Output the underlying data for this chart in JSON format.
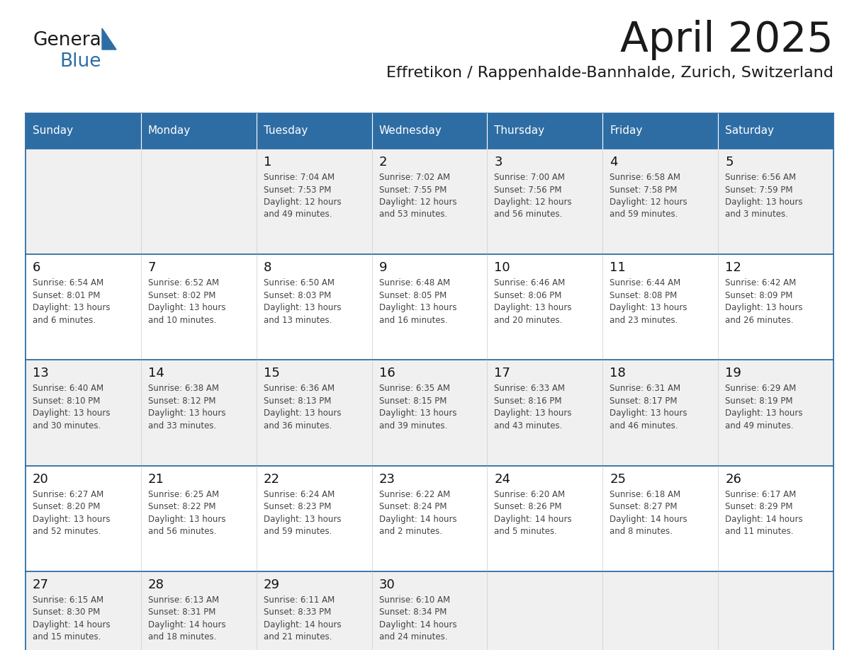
{
  "title": "April 2025",
  "subtitle": "Effretikon / Rappenhalde-Bannhalde, Zurich, Switzerland",
  "header_bg_color": "#2E6DA4",
  "header_text_color": "#FFFFFF",
  "cell_bg_color_odd": "#F0F0F0",
  "cell_bg_color_even": "#FFFFFF",
  "cell_text_color": "#444444",
  "day_number_color": "#111111",
  "grid_line_color": "#2E6DA4",
  "days_of_week": [
    "Sunday",
    "Monday",
    "Tuesday",
    "Wednesday",
    "Thursday",
    "Friday",
    "Saturday"
  ],
  "weeks": [
    [
      {
        "day": "",
        "sunrise": "",
        "sunset": "",
        "daylight": ""
      },
      {
        "day": "",
        "sunrise": "",
        "sunset": "",
        "daylight": ""
      },
      {
        "day": "1",
        "sunrise": "Sunrise: 7:04 AM",
        "sunset": "Sunset: 7:53 PM",
        "daylight": "Daylight: 12 hours\nand 49 minutes."
      },
      {
        "day": "2",
        "sunrise": "Sunrise: 7:02 AM",
        "sunset": "Sunset: 7:55 PM",
        "daylight": "Daylight: 12 hours\nand 53 minutes."
      },
      {
        "day": "3",
        "sunrise": "Sunrise: 7:00 AM",
        "sunset": "Sunset: 7:56 PM",
        "daylight": "Daylight: 12 hours\nand 56 minutes."
      },
      {
        "day": "4",
        "sunrise": "Sunrise: 6:58 AM",
        "sunset": "Sunset: 7:58 PM",
        "daylight": "Daylight: 12 hours\nand 59 minutes."
      },
      {
        "day": "5",
        "sunrise": "Sunrise: 6:56 AM",
        "sunset": "Sunset: 7:59 PM",
        "daylight": "Daylight: 13 hours\nand 3 minutes."
      }
    ],
    [
      {
        "day": "6",
        "sunrise": "Sunrise: 6:54 AM",
        "sunset": "Sunset: 8:01 PM",
        "daylight": "Daylight: 13 hours\nand 6 minutes."
      },
      {
        "day": "7",
        "sunrise": "Sunrise: 6:52 AM",
        "sunset": "Sunset: 8:02 PM",
        "daylight": "Daylight: 13 hours\nand 10 minutes."
      },
      {
        "day": "8",
        "sunrise": "Sunrise: 6:50 AM",
        "sunset": "Sunset: 8:03 PM",
        "daylight": "Daylight: 13 hours\nand 13 minutes."
      },
      {
        "day": "9",
        "sunrise": "Sunrise: 6:48 AM",
        "sunset": "Sunset: 8:05 PM",
        "daylight": "Daylight: 13 hours\nand 16 minutes."
      },
      {
        "day": "10",
        "sunrise": "Sunrise: 6:46 AM",
        "sunset": "Sunset: 8:06 PM",
        "daylight": "Daylight: 13 hours\nand 20 minutes."
      },
      {
        "day": "11",
        "sunrise": "Sunrise: 6:44 AM",
        "sunset": "Sunset: 8:08 PM",
        "daylight": "Daylight: 13 hours\nand 23 minutes."
      },
      {
        "day": "12",
        "sunrise": "Sunrise: 6:42 AM",
        "sunset": "Sunset: 8:09 PM",
        "daylight": "Daylight: 13 hours\nand 26 minutes."
      }
    ],
    [
      {
        "day": "13",
        "sunrise": "Sunrise: 6:40 AM",
        "sunset": "Sunset: 8:10 PM",
        "daylight": "Daylight: 13 hours\nand 30 minutes."
      },
      {
        "day": "14",
        "sunrise": "Sunrise: 6:38 AM",
        "sunset": "Sunset: 8:12 PM",
        "daylight": "Daylight: 13 hours\nand 33 minutes."
      },
      {
        "day": "15",
        "sunrise": "Sunrise: 6:36 AM",
        "sunset": "Sunset: 8:13 PM",
        "daylight": "Daylight: 13 hours\nand 36 minutes."
      },
      {
        "day": "16",
        "sunrise": "Sunrise: 6:35 AM",
        "sunset": "Sunset: 8:15 PM",
        "daylight": "Daylight: 13 hours\nand 39 minutes."
      },
      {
        "day": "17",
        "sunrise": "Sunrise: 6:33 AM",
        "sunset": "Sunset: 8:16 PM",
        "daylight": "Daylight: 13 hours\nand 43 minutes."
      },
      {
        "day": "18",
        "sunrise": "Sunrise: 6:31 AM",
        "sunset": "Sunset: 8:17 PM",
        "daylight": "Daylight: 13 hours\nand 46 minutes."
      },
      {
        "day": "19",
        "sunrise": "Sunrise: 6:29 AM",
        "sunset": "Sunset: 8:19 PM",
        "daylight": "Daylight: 13 hours\nand 49 minutes."
      }
    ],
    [
      {
        "day": "20",
        "sunrise": "Sunrise: 6:27 AM",
        "sunset": "Sunset: 8:20 PM",
        "daylight": "Daylight: 13 hours\nand 52 minutes."
      },
      {
        "day": "21",
        "sunrise": "Sunrise: 6:25 AM",
        "sunset": "Sunset: 8:22 PM",
        "daylight": "Daylight: 13 hours\nand 56 minutes."
      },
      {
        "day": "22",
        "sunrise": "Sunrise: 6:24 AM",
        "sunset": "Sunset: 8:23 PM",
        "daylight": "Daylight: 13 hours\nand 59 minutes."
      },
      {
        "day": "23",
        "sunrise": "Sunrise: 6:22 AM",
        "sunset": "Sunset: 8:24 PM",
        "daylight": "Daylight: 14 hours\nand 2 minutes."
      },
      {
        "day": "24",
        "sunrise": "Sunrise: 6:20 AM",
        "sunset": "Sunset: 8:26 PM",
        "daylight": "Daylight: 14 hours\nand 5 minutes."
      },
      {
        "day": "25",
        "sunrise": "Sunrise: 6:18 AM",
        "sunset": "Sunset: 8:27 PM",
        "daylight": "Daylight: 14 hours\nand 8 minutes."
      },
      {
        "day": "26",
        "sunrise": "Sunrise: 6:17 AM",
        "sunset": "Sunset: 8:29 PM",
        "daylight": "Daylight: 14 hours\nand 11 minutes."
      }
    ],
    [
      {
        "day": "27",
        "sunrise": "Sunrise: 6:15 AM",
        "sunset": "Sunset: 8:30 PM",
        "daylight": "Daylight: 14 hours\nand 15 minutes."
      },
      {
        "day": "28",
        "sunrise": "Sunrise: 6:13 AM",
        "sunset": "Sunset: 8:31 PM",
        "daylight": "Daylight: 14 hours\nand 18 minutes."
      },
      {
        "day": "29",
        "sunrise": "Sunrise: 6:11 AM",
        "sunset": "Sunset: 8:33 PM",
        "daylight": "Daylight: 14 hours\nand 21 minutes."
      },
      {
        "day": "30",
        "sunrise": "Sunrise: 6:10 AM",
        "sunset": "Sunset: 8:34 PM",
        "daylight": "Daylight: 14 hours\nand 24 minutes."
      },
      {
        "day": "",
        "sunrise": "",
        "sunset": "",
        "daylight": ""
      },
      {
        "day": "",
        "sunrise": "",
        "sunset": "",
        "daylight": ""
      },
      {
        "day": "",
        "sunrise": "",
        "sunset": "",
        "daylight": ""
      }
    ]
  ],
  "fig_width": 11.88,
  "fig_height": 9.18,
  "dpi": 100
}
